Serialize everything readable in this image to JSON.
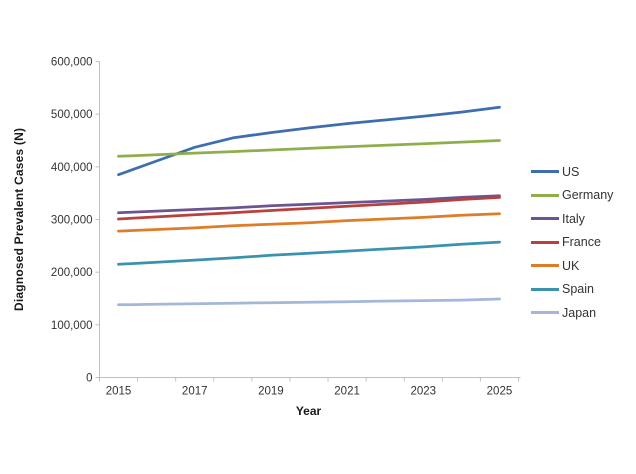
{
  "chart_data": {
    "type": "line",
    "title": "",
    "xlabel": "Year",
    "ylabel": "Diagnosed Prevalent Cases (N)",
    "x": [
      2015,
      2016,
      2017,
      2018,
      2019,
      2020,
      2021,
      2022,
      2023,
      2024,
      2025
    ],
    "x_tick_labels": [
      "2015",
      "2017",
      "2019",
      "2021",
      "2023",
      "2025"
    ],
    "x_tick_label_indices": [
      0,
      2,
      4,
      6,
      8,
      10
    ],
    "y_ticks": [
      0,
      100000,
      200000,
      300000,
      400000,
      500000,
      600000
    ],
    "y_tick_labels": [
      "0",
      "100,000",
      "200,000",
      "300,000",
      "400,000",
      "500,000",
      "600,000"
    ],
    "ylim": [
      0,
      600000
    ],
    "grid": false,
    "legend_position": "right",
    "axis_color": "#BFBFBF",
    "text_color": "#333333",
    "series": [
      {
        "name": "US",
        "color": "#3F6EAF",
        "values": [
          385000,
          411000,
          437000,
          455000,
          465000,
          474000,
          482000,
          489000,
          496000,
          504000,
          513000
        ]
      },
      {
        "name": "Germany",
        "color": "#8FAF4C",
        "values": [
          420000,
          423000,
          426000,
          429000,
          432000,
          435000,
          438000,
          441000,
          444000,
          447000,
          450000
        ]
      },
      {
        "name": "Italy",
        "color": "#6C5493",
        "values": [
          313000,
          316000,
          319000,
          322000,
          326000,
          329000,
          332000,
          335000,
          338000,
          342000,
          345000
        ]
      },
      {
        "name": "France",
        "color": "#B7413D",
        "values": [
          301000,
          305000,
          309000,
          313000,
          317000,
          321000,
          325000,
          329000,
          333000,
          338000,
          342000
        ]
      },
      {
        "name": "UK",
        "color": "#DE7C28",
        "values": [
          278000,
          281000,
          284000,
          288000,
          291000,
          294000,
          298000,
          301000,
          304000,
          308000,
          311000
        ]
      },
      {
        "name": "Spain",
        "color": "#3A93AC",
        "values": [
          215000,
          219000,
          223000,
          227000,
          232000,
          236000,
          240000,
          244000,
          248000,
          253000,
          257000
        ]
      },
      {
        "name": "Japan",
        "color": "#A3B7DC",
        "values": [
          138000,
          139000,
          140000,
          141000,
          142000,
          143000,
          144000,
          145000,
          146000,
          147000,
          149000
        ]
      }
    ]
  }
}
